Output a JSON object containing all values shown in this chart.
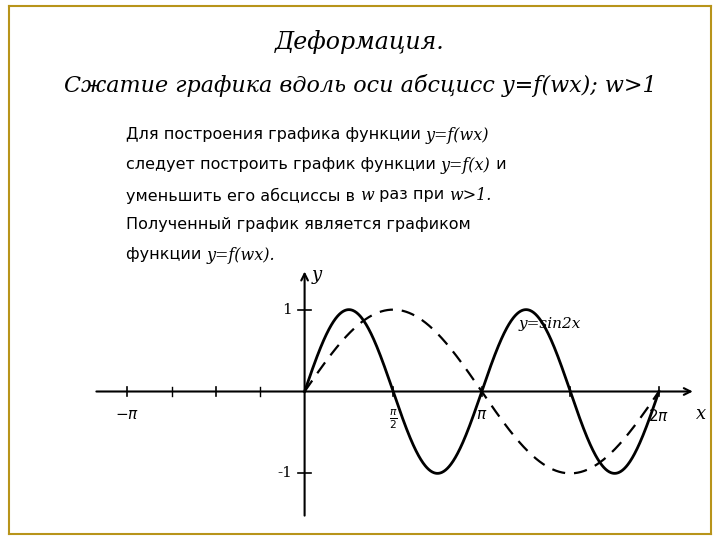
{
  "title_line1": "Деформация.",
  "title_line2": "Сжатие графика вдоль оси абсцисс y=f(wx); w>1",
  "description_parts": [
    [
      "Для построения графика функции ",
      "y=f(wx)",
      false
    ],
    [
      "\nследует построить график функции ",
      "y=f(x)",
      false
    ],
    [
      " и",
      "",
      false
    ],
    [
      "\nуменьшить его абсциссы в ",
      "w",
      false
    ],
    [
      " раз при ",
      "w>1.",
      false
    ],
    [
      "\nПолученный график является графиком",
      "",
      false
    ],
    [
      "\nфункции ",
      "y=f(wx)",
      false
    ],
    [
      ".",
      "",
      false
    ]
  ],
  "annotation": "y=sin2x",
  "background_color": "#ffffff",
  "border_color": "#b8941a",
  "title_color": "#000000",
  "curve_color": "#000000",
  "pi": 3.14159265358979
}
